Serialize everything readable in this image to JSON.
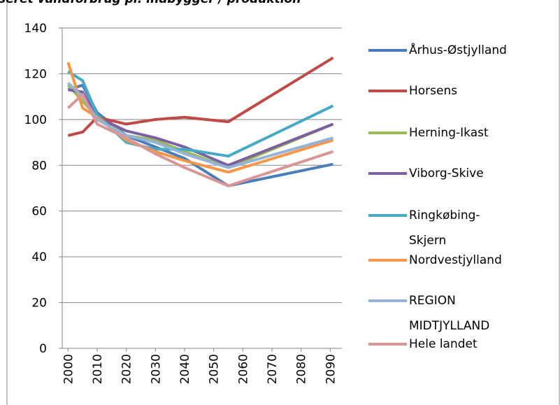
{
  "chart_data": {
    "type": "line",
    "title": "seret vandforbrug pr. indbygger / produktion",
    "xlim": [
      1998,
      2094
    ],
    "xticks": [
      2000,
      2010,
      2020,
      2030,
      2040,
      2050,
      2060,
      2070,
      2080,
      2090
    ],
    "ylim": [
      0,
      140
    ],
    "yticks": [
      0,
      20,
      40,
      60,
      80,
      100,
      120,
      140
    ],
    "grid": true,
    "legend": "right",
    "x": [
      2000,
      2005,
      2010,
      2020,
      2030,
      2040,
      2055,
      2091
    ],
    "series": [
      {
        "name": "Århus-Østjylland",
        "color": "#4a7ebb",
        "values": [
          113,
          115,
          103,
          93,
          88,
          83,
          71,
          80.5
        ]
      },
      {
        "name": "Horsens",
        "color": "#be4b48",
        "values": [
          93,
          94.5,
          101,
          98,
          100,
          101,
          99,
          127
        ]
      },
      {
        "name": "Herning-Ikast",
        "color": "#98b954",
        "values": [
          115,
          108,
          101,
          93,
          91,
          86,
          79,
          98
        ]
      },
      {
        "name": "Viborg-Skive",
        "color": "#7d60a0",
        "values": [
          113,
          112,
          101,
          95,
          92,
          88,
          80,
          98
        ]
      },
      {
        "name": "Ringkøbing-Skjern",
        "color": "#46aac5",
        "values": [
          121,
          117,
          102,
          90,
          87,
          87,
          84,
          106
        ]
      },
      {
        "name": "Nordvestjylland",
        "color": "#f79646",
        "values": [
          125,
          105,
          101,
          91,
          86,
          82,
          77,
          91
        ]
      },
      {
        "name": "REGION MIDTJYLLAND",
        "color": "#95b3d7",
        "values": [
          116,
          110,
          100,
          93,
          90,
          85,
          79,
          92
        ]
      },
      {
        "name": "Hele landet",
        "color": "#d99694",
        "values": [
          105,
          111,
          98,
          92,
          85,
          79,
          71,
          86
        ]
      }
    ]
  }
}
